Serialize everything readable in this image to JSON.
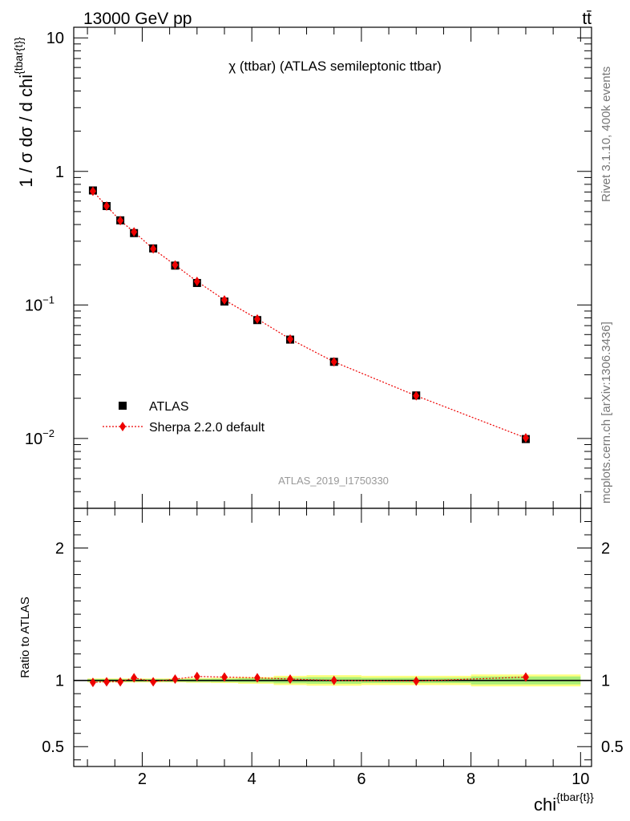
{
  "header": {
    "energy_label": "13000 GeV pp",
    "process_label": "tt̄"
  },
  "side_labels": {
    "rivet": "Rivet 3.1.10,  400k events",
    "mcplots": "mcplots.cern.ch [arXiv:1306.3436]"
  },
  "chart_data": [
    {
      "type": "scatter",
      "panel": "main",
      "title": "χ (ttbar) (ATLAS semileptonic ttbar)",
      "watermark": "ATLAS_2019_I1750330",
      "ylabel": "1 / σ dσ / d chi^{tbar{t}}",
      "yscale": "log",
      "ylim": [
        0.003,
        12
      ],
      "xlim": [
        0.75,
        10.2
      ],
      "y_tick_labels": [
        "10⁻²",
        "10⁻¹",
        "1",
        "10"
      ],
      "legend_position": "lower-left",
      "series": [
        {
          "name": "ATLAS",
          "color": "#000000",
          "marker": "square",
          "x": [
            1.1,
            1.35,
            1.6,
            1.85,
            2.2,
            2.6,
            3.0,
            3.5,
            4.1,
            4.7,
            5.5,
            7.0,
            9.0
          ],
          "y": [
            0.72,
            0.55,
            0.43,
            0.345,
            0.265,
            0.197,
            0.146,
            0.106,
            0.077,
            0.055,
            0.0375,
            0.021,
            0.0099
          ]
        },
        {
          "name": "Sherpa 2.2.0 default",
          "color": "#ee0000",
          "marker": "diamond",
          "line": "dotted",
          "x": [
            1.1,
            1.35,
            1.6,
            1.85,
            2.2,
            2.6,
            3.0,
            3.5,
            4.1,
            4.7,
            5.5,
            7.0,
            9.0
          ],
          "y": [
            0.71,
            0.55,
            0.428,
            0.352,
            0.263,
            0.199,
            0.15,
            0.109,
            0.0785,
            0.0555,
            0.0375,
            0.0209,
            0.0101
          ]
        }
      ]
    },
    {
      "type": "scatter",
      "panel": "ratio",
      "xlabel": "chi^{tbar{t}}",
      "ylabel": "Ratio to ATLAS",
      "ylim": [
        0.35,
        2.3
      ],
      "xlim": [
        0.75,
        10.2
      ],
      "x_ticks": [
        2,
        4,
        6,
        8,
        10
      ],
      "y_ticks": [
        0.5,
        1,
        2
      ],
      "reference": 1.0,
      "bands": {
        "x_edges": [
          1.0,
          1.225,
          1.475,
          1.725,
          2.0,
          2.4,
          2.8,
          3.25,
          3.75,
          4.4,
          5.0,
          6.0,
          8.0,
          10.0
        ],
        "outer_half_width": [
          0.015,
          0.015,
          0.015,
          0.015,
          0.015,
          0.015,
          0.018,
          0.02,
          0.025,
          0.035,
          0.04,
          0.035,
          0.045
        ],
        "inner_half_width": [
          0.01,
          0.01,
          0.01,
          0.01,
          0.01,
          0.01,
          0.012,
          0.013,
          0.016,
          0.022,
          0.025,
          0.02,
          0.03
        ],
        "outer_color": "#ffff80",
        "inner_color": "#aaee77"
      },
      "series": [
        {
          "name": "Sherpa 2.2.0 default",
          "color": "#ee0000",
          "marker": "diamond",
          "x": [
            1.1,
            1.35,
            1.6,
            1.85,
            2.2,
            2.6,
            3.0,
            3.5,
            4.1,
            4.7,
            5.5,
            7.0,
            9.0
          ],
          "y": [
            0.985,
            0.99,
            0.99,
            1.02,
            0.99,
            1.01,
            1.03,
            1.025,
            1.02,
            1.01,
            1.0,
            0.995,
            1.025
          ]
        }
      ]
    }
  ]
}
